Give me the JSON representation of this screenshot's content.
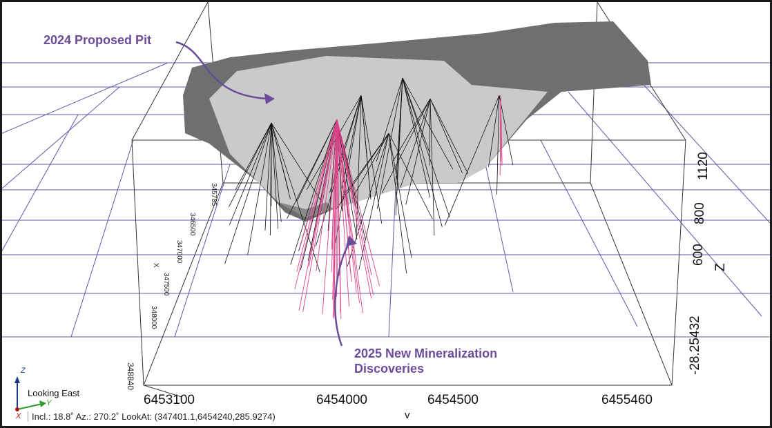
{
  "annotations": {
    "pit": "2024 Proposed Pit",
    "discoveries_line1": "2025 New Mineralization",
    "discoveries_line2": "Discoveries"
  },
  "y_axis_ticks": [
    "6453100",
    "6454000",
    "6454500",
    "6455460"
  ],
  "x_axis": {
    "label": "X",
    "ticks": [
      "345785",
      "346500",
      "347000",
      "347500",
      "348000",
      "348840"
    ]
  },
  "z_axis": {
    "label": "Z",
    "ticks": [
      "1120",
      "800",
      "600",
      "-28.25432"
    ]
  },
  "view": {
    "direction": "Looking East",
    "status": "Incl.: 18.8˚ Az.: 270.2˚ LookAt: (347401.1,6454240,285.9274)",
    "chevron": "v"
  },
  "triad": {
    "z": "Z",
    "y": "Y",
    "x": "X"
  },
  "colors": {
    "annotation": "#6b4c9a",
    "grid": "#5a5aa8",
    "pit_outer": "#6f6f6f",
    "pit_inner": "#c9c9c9",
    "drill": "#111111",
    "new_drill": "#e0408a"
  }
}
